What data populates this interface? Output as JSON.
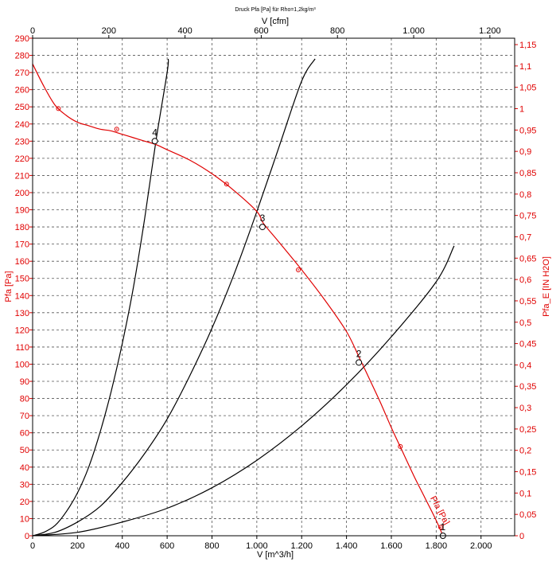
{
  "chart_data": {
    "type": "line",
    "title": "Druck Pfa [Pa] für Rho=1,2kg/m³",
    "xlabel": "V [m^3/h]",
    "xlabel_top": "V [cfm]",
    "ylabel": "Pfa [Pa]",
    "ylabel_right": "Pfa_E [IN H2O]",
    "xlim": [
      0,
      2150
    ],
    "ylim": [
      0,
      290
    ],
    "xlim_top": [
      0,
      1265
    ],
    "ylim_right": [
      0,
      1.165
    ],
    "grid": true,
    "x_ticks": [
      0,
      200,
      400,
      600,
      800,
      1000,
      1200,
      1400,
      1600,
      1800,
      2000
    ],
    "x_tick_labels": [
      "0",
      "200",
      "400",
      "600",
      "800",
      "1.000",
      "1.200",
      "1.400",
      "1.600",
      "1.800",
      "2.000"
    ],
    "y_ticks": [
      0,
      10,
      20,
      30,
      40,
      50,
      60,
      70,
      80,
      90,
      100,
      110,
      120,
      130,
      140,
      150,
      160,
      170,
      180,
      190,
      200,
      210,
      220,
      230,
      240,
      250,
      260,
      270,
      280,
      290
    ],
    "x_top_ticks": [
      0,
      200,
      400,
      600,
      800,
      1000,
      1200
    ],
    "x_top_tick_labels": [
      "0",
      "200",
      "400",
      "600",
      "800",
      "1.000",
      "1.200"
    ],
    "y_right_ticks": [
      0,
      0.05,
      0.1,
      0.15,
      0.2,
      0.25,
      0.3,
      0.35,
      0.4,
      0.45,
      0.5,
      0.55,
      0.6,
      0.65,
      0.7,
      0.75,
      0.8,
      0.85,
      0.9,
      0.95,
      1.0,
      1.05,
      1.1,
      1.15
    ],
    "y_right_tick_labels": [
      "0",
      "0,05",
      "0,1",
      "0,15",
      "0,2",
      "0,25",
      "0,3",
      "0,35",
      "0,4",
      "0,45",
      "0,5",
      "0,55",
      "0,6",
      "0,65",
      "0,7",
      "0,75",
      "0,8",
      "0,85",
      "0,9",
      "0,95",
      "1",
      "1,05",
      "1,1",
      "1,15"
    ],
    "fan_curve": {
      "name": "Pfa [Pa]",
      "color": "#e00000",
      "x": [
        0,
        50,
        100,
        150,
        200,
        250,
        300,
        350,
        400,
        450,
        500,
        550,
        600,
        700,
        800,
        900,
        1000,
        1030,
        1100,
        1200,
        1300,
        1400,
        1460,
        1500,
        1550,
        1600,
        1650,
        1700,
        1750,
        1800,
        1830
      ],
      "y": [
        275,
        262,
        251,
        245,
        241,
        239,
        237,
        236,
        234,
        232,
        230,
        228,
        225,
        219,
        211,
        201,
        189,
        182,
        171,
        155,
        138,
        119,
        103,
        92,
        78,
        63,
        49,
        35,
        22,
        9,
        0
      ],
      "markers": [
        {
          "x": 115,
          "y": 249
        },
        {
          "x": 375,
          "y": 237
        },
        {
          "x": 865,
          "y": 205
        },
        {
          "x": 1185,
          "y": 155
        },
        {
          "x": 1640,
          "y": 52
        },
        {
          "x": 1820,
          "y": 5
        }
      ]
    },
    "system_curves": [
      {
        "x": [
          0,
          50,
          100,
          150,
          200,
          250,
          300,
          350,
          400,
          450,
          500,
          550,
          600,
          605
        ],
        "y": [
          0,
          2,
          6,
          14,
          25,
          40,
          60,
          84,
          112,
          145,
          185,
          230,
          270,
          278
        ],
        "color": "#000000"
      },
      {
        "x": [
          0,
          100,
          200,
          300,
          400,
          500,
          600,
          700,
          800,
          900,
          1000,
          1100,
          1200,
          1260
        ],
        "y": [
          0,
          2,
          8,
          17,
          31,
          48,
          68,
          93,
          121,
          153,
          189,
          227,
          265,
          278
        ],
        "color": "#000000"
      },
      {
        "x": [
          0,
          200,
          400,
          600,
          800,
          1000,
          1200,
          1400,
          1600,
          1800,
          1880
        ],
        "y": [
          0,
          2,
          8,
          16,
          28,
          44,
          64,
          88,
          116,
          148,
          169
        ],
        "color": "#000000"
      }
    ],
    "operating_points": [
      {
        "label": "1",
        "x": 1830,
        "y": 0
      },
      {
        "label": "2",
        "x": 1455,
        "y": 101
      },
      {
        "label": "3",
        "x": 1025,
        "y": 180
      },
      {
        "label": "4",
        "x": 545,
        "y": 230
      }
    ]
  }
}
